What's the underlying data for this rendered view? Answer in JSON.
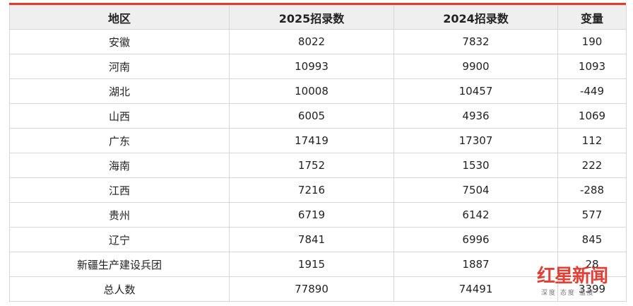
{
  "table": {
    "headers": [
      "地区",
      "2025招录数",
      "2024招录数",
      "变量"
    ],
    "rows": [
      [
        "安徽",
        "8022",
        "7832",
        "190"
      ],
      [
        "河南",
        "10993",
        "9900",
        "1093"
      ],
      [
        "湖北",
        "10008",
        "10457",
        "-449"
      ],
      [
        "山西",
        "6005",
        "4936",
        "1069"
      ],
      [
        "广东",
        "17419",
        "17307",
        "112"
      ],
      [
        "海南",
        "1752",
        "1530",
        "222"
      ],
      [
        "江西",
        "7216",
        "7504",
        "-288"
      ],
      [
        "贵州",
        "6719",
        "6142",
        "577"
      ],
      [
        "辽宁",
        "7841",
        "6996",
        "845"
      ],
      [
        "新疆生产建设兵团",
        "1915",
        "1887",
        "28"
      ],
      [
        "总人数",
        "77890",
        "74491",
        "3399"
      ]
    ]
  },
  "watermark": {
    "brand": "红星新闻",
    "tagline": "深度 态度 温度"
  },
  "colors": {
    "accent": "#d9402b",
    "header_bg": "#efefef"
  }
}
